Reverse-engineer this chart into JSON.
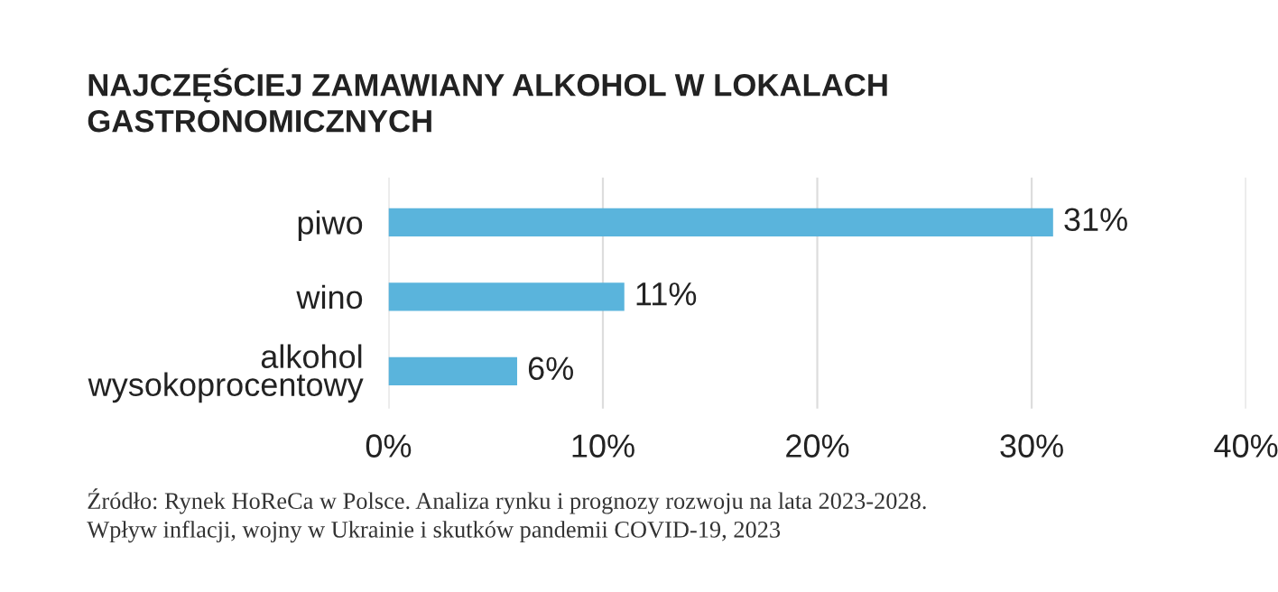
{
  "chart_data": {
    "type": "bar",
    "orientation": "horizontal",
    "title": "NAJCZĘŚCIEJ ZAMAWIANY ALKOHOL W LOKALACH\nGASTRONOMICZNYCH",
    "categories": [
      "piwo",
      "wino",
      "alkohol\nwysokoprocentowy"
    ],
    "values": [
      31,
      11,
      6
    ],
    "color": "#5ab4dc",
    "value_labels": [
      "31%",
      "11%",
      "6%"
    ],
    "xlim": [
      0,
      40
    ],
    "xticks": [
      {
        "value": 0,
        "label": "0%"
      },
      {
        "value": 10,
        "label": "10%"
      },
      {
        "value": 20,
        "label": "20%"
      },
      {
        "value": 30,
        "label": "30%"
      },
      {
        "value": 40,
        "label": "40%"
      }
    ],
    "grid": "x",
    "annotations": [
      "Źródło: Rynek HoReCa w Polsce. Analiza rynku i prognozy rozwoju na lata 2023-2028.\nWpływ inflacji, wojny w Ukrainie i skutków pandemii COVID-19, 2023"
    ]
  }
}
